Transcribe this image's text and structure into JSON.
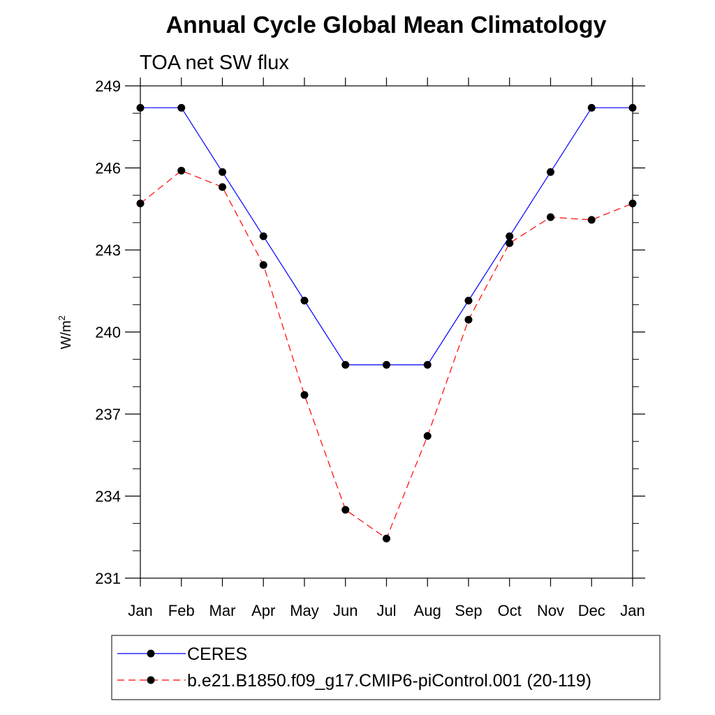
{
  "chart_data": {
    "type": "line",
    "title": "Annual Cycle Global Mean Climatology",
    "subtitle": "TOA net SW flux",
    "ylabel": "W/m",
    "ylabel_superscript": "2",
    "xlabel": "",
    "categories": [
      "Jan",
      "Feb",
      "Mar",
      "Apr",
      "May",
      "Jun",
      "Jul",
      "Aug",
      "Sep",
      "Oct",
      "Nov",
      "Dec",
      "Jan"
    ],
    "yticks": [
      231,
      234,
      237,
      240,
      243,
      246,
      249
    ],
    "ylim": [
      231,
      249
    ],
    "series": [
      {
        "name": "CERES",
        "color": "#0000ff",
        "dash": "solid",
        "values": [
          248.2,
          248.2,
          245.85,
          243.5,
          241.15,
          238.8,
          238.8,
          238.8,
          241.15,
          243.5,
          245.85,
          248.2,
          248.2
        ]
      },
      {
        "name": "b.e21.B1850.f09_g17.CMIP6-piControl.001 (20-119)",
        "color": "#ff0000",
        "dash": "dashed",
        "values": [
          244.7,
          245.9,
          245.3,
          242.45,
          237.7,
          233.5,
          232.45,
          236.2,
          240.45,
          243.25,
          244.2,
          244.1,
          244.7
        ]
      }
    ],
    "marker_color": "#000000"
  }
}
